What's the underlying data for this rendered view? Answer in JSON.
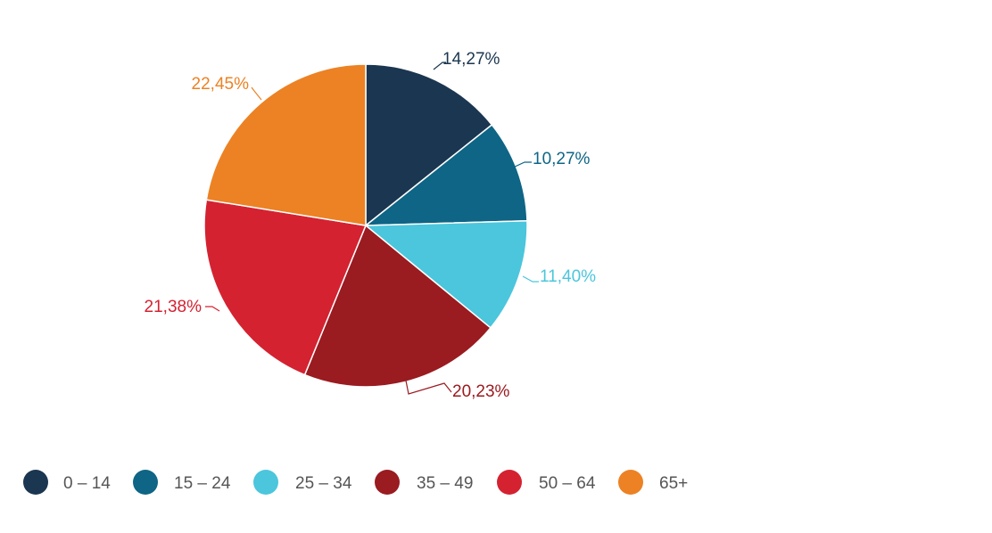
{
  "chart_data": {
    "type": "pie",
    "title": "",
    "categories": [
      "0 – 14",
      "15 – 24",
      "25 – 34",
      "35 – 49",
      "50 – 64",
      "65+"
    ],
    "values": [
      14.27,
      10.27,
      11.4,
      20.23,
      21.38,
      22.45
    ],
    "data_labels": [
      "14,27%",
      "10,27%",
      "11,40%",
      "20,23%",
      "21,38%",
      "22,45%"
    ],
    "colors": [
      "#1b3650",
      "#0e6585",
      "#4bc6dc",
      "#9a1b20",
      "#d42231",
      "#ec8224"
    ],
    "legend_position": "bottom-left",
    "start_angle_deg": 0,
    "direction": "clockwise"
  }
}
